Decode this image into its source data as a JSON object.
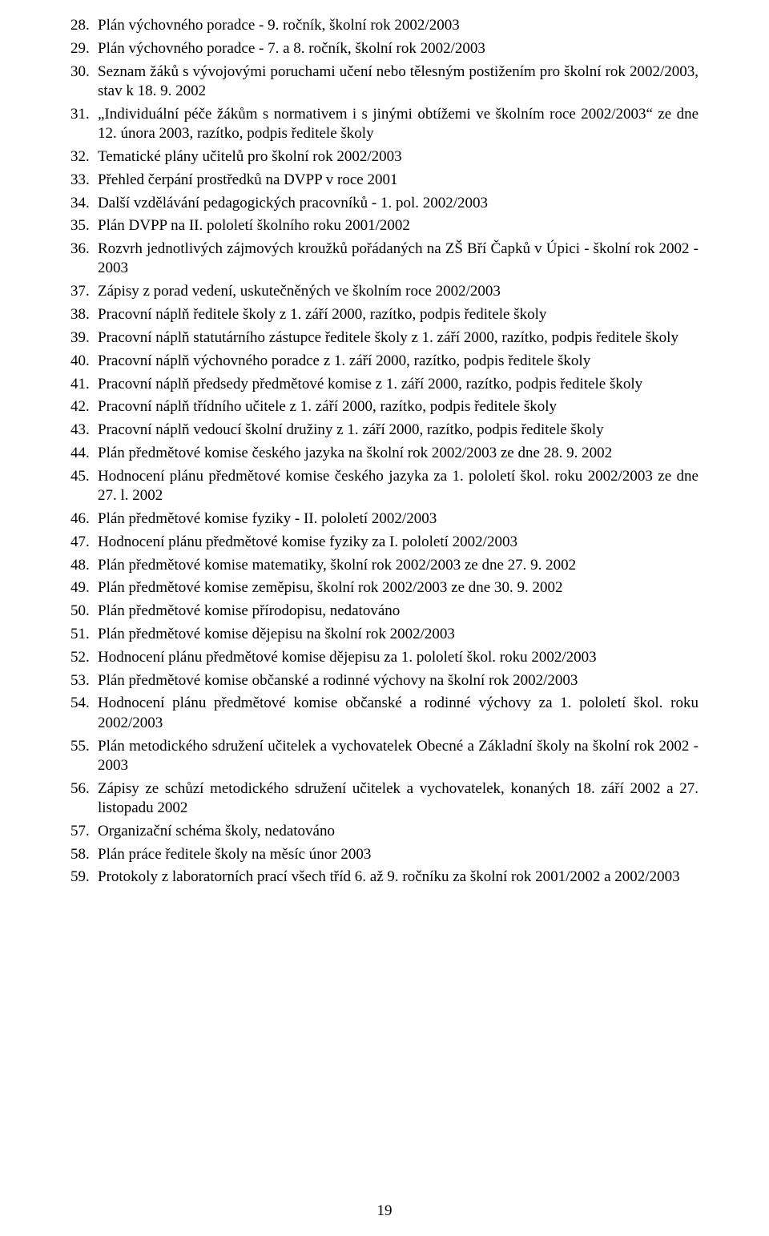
{
  "list": {
    "start": 28,
    "items": [
      "Plán výchovného poradce - 9. ročník, školní rok 2002/2003",
      "Plán výchovného poradce - 7. a 8. ročník, školní rok 2002/2003",
      "Seznam žáků s vývojovými poruchami učení nebo tělesným postižením pro školní rok 2002/2003, stav k 18. 9. 2002",
      "„Individuální péče žákům s normativem i s jinými obtížemi ve školním roce 2002/2003“ ze dne 12. února 2003, razítko, podpis ředitele školy",
      "Tematické plány učitelů pro školní rok 2002/2003",
      "Přehled čerpání prostředků na DVPP v roce 2001",
      "Další vzdělávání pedagogických pracovníků - 1. pol. 2002/2003",
      "Plán DVPP na II. pololetí školního roku 2001/2002",
      "Rozvrh jednotlivých zájmových kroužků pořádaných na ZŠ Bří Čapků v Úpici - školní rok 2002 - 2003",
      "Zápisy z porad vedení, uskutečněných ve školním roce 2002/2003",
      "Pracovní náplň ředitele školy z 1. září 2000, razítko, podpis ředitele školy",
      "Pracovní náplň statutárního zástupce ředitele školy z 1. září 2000, razítko, podpis ředitele školy",
      "Pracovní náplň výchovného poradce z 1. září 2000, razítko, podpis ředitele školy",
      "Pracovní náplň předsedy předmětové komise z 1. září 2000, razítko, podpis ředitele školy",
      "Pracovní náplň třídního učitele z 1. září 2000, razítko, podpis ředitele školy",
      "Pracovní náplň vedoucí školní družiny z 1. září 2000, razítko, podpis ředitele školy",
      "Plán předmětové komise českého jazyka na školní rok 2002/2003 ze dne 28. 9. 2002",
      "Hodnocení plánu předmětové komise českého jazyka za 1. pololetí škol. roku 2002/2003 ze dne 27. l. 2002",
      "Plán předmětové komise fyziky - II. pololetí 2002/2003",
      "Hodnocení plánu předmětové komise fyziky za I. pololetí 2002/2003",
      "Plán předmětové komise matematiky, školní rok 2002/2003 ze dne 27. 9. 2002",
      "Plán předmětové komise zeměpisu, školní rok 2002/2003 ze dne 30. 9. 2002",
      "Plán předmětové komise přírodopisu, nedatováno",
      "Plán předmětové komise dějepisu na školní rok 2002/2003",
      "Hodnocení plánu předmětové komise dějepisu za 1. pololetí škol. roku 2002/2003",
      "Plán předmětové komise občanské a rodinné výchovy na školní rok 2002/2003",
      "Hodnocení plánu předmětové komise občanské a rodinné výchovy za 1. pololetí škol. roku 2002/2003",
      "Plán metodického sdružení učitelek a vychovatelek Obecné a Základní školy na školní rok 2002 - 2003",
      "Zápisy ze schůzí metodického sdružení učitelek a vychovatelek, konaných 18. září 2002 a 27. listopadu 2002",
      "Organizační schéma školy, nedatováno",
      "Plán práce ředitele školy na měsíc únor 2003",
      "Protokoly z laboratorních prací všech tříd 6. až 9. ročníku za školní rok 2001/2002 a 2002/2003"
    ]
  },
  "page_number": "19"
}
